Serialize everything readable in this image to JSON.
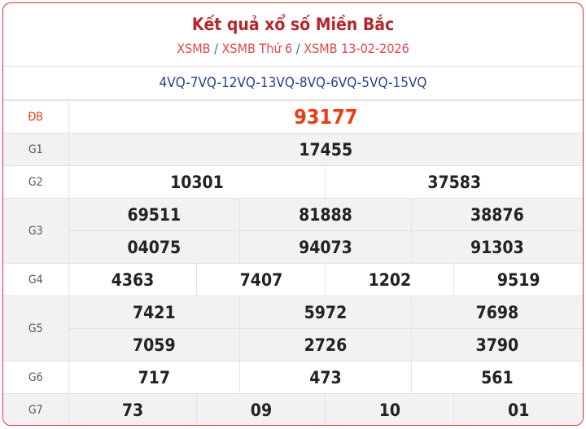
{
  "header": {
    "title": "Kết quả xổ số Miền Bắc",
    "breadcrumb": [
      "XSMB",
      "XSMB Thứ 6",
      "XSMB 13-02-2026"
    ],
    "separator": "/"
  },
  "codes": "4VQ-7VQ-12VQ-13VQ-8VQ-6VQ-5VQ-15VQ",
  "prizes": {
    "db": {
      "label": "ĐB",
      "numbers": [
        "93177"
      ]
    },
    "g1": {
      "label": "G1",
      "numbers": [
        "17455"
      ]
    },
    "g2": {
      "label": "G2",
      "numbers": [
        "10301",
        "37583"
      ]
    },
    "g3": {
      "label": "G3",
      "numbers": [
        "69511",
        "81888",
        "38876",
        "04075",
        "94073",
        "91303"
      ]
    },
    "g4": {
      "label": "G4",
      "numbers": [
        "4363",
        "7407",
        "1202",
        "9519"
      ]
    },
    "g5": {
      "label": "G5",
      "numbers": [
        "7421",
        "5972",
        "7698",
        "7059",
        "2726",
        "3790"
      ]
    },
    "g6": {
      "label": "G6",
      "numbers": [
        "717",
        "473",
        "561"
      ]
    },
    "g7": {
      "label": "G7",
      "numbers": [
        "73",
        "09",
        "10",
        "01"
      ]
    }
  },
  "colors": {
    "border": "#e0303a",
    "title": "#b5262c",
    "special": "#ee3a12",
    "codes": "#283f8c"
  }
}
